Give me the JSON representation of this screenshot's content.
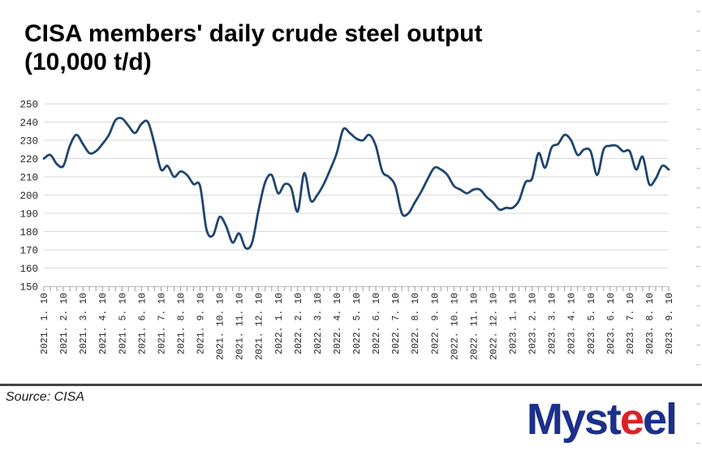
{
  "title": {
    "line1": "CISA members' daily crude steel output",
    "line2": "(10,000 t/d)"
  },
  "chart_data": {
    "type": "line",
    "title": "CISA members' daily crude steel output (10,000 t/d)",
    "xlabel": "",
    "ylabel": "",
    "ylim": [
      150,
      250
    ],
    "y_ticks": [
      250,
      240,
      230,
      220,
      210,
      200,
      190,
      180,
      170,
      160,
      150
    ],
    "grid": "horizontal",
    "legend": "none",
    "points_per_month": 3,
    "x_tick_labels": [
      "2021. 1. 10",
      "2021. 2. 10",
      "2021. 3. 10",
      "2021. 4. 10",
      "2021. 5. 10",
      "2021. 6. 10",
      "2021. 7. 10",
      "2021. 8. 10",
      "2021. 9. 10",
      "2021. 10. 10",
      "2021. 11. 10",
      "2021. 12. 10",
      "2022. 1. 10",
      "2022. 2. 10",
      "2022. 3. 10",
      "2022. 4. 10",
      "2022. 5. 10",
      "2022. 6. 10",
      "2022. 7. 10",
      "2022. 8. 10",
      "2022. 9. 10",
      "2022. 10. 10",
      "2022. 11. 10",
      "2022. 12. 10",
      "2023. 1. 10",
      "2023. 2. 10",
      "2023. 3. 10",
      "2023. 4. 10",
      "2023. 5. 10",
      "2023. 6. 10",
      "2023. 7. 10",
      "2023. 8. 10",
      "2023. 9. 10"
    ],
    "series": [
      {
        "name": "CISA members' daily crude steel output",
        "values": [
          220,
          222,
          217,
          216,
          227,
          233,
          228,
          223,
          224,
          228,
          233,
          241,
          242,
          238,
          234,
          239,
          240,
          228,
          214,
          216,
          210,
          213,
          211,
          206,
          205,
          181,
          178,
          188,
          183,
          174,
          179,
          171,
          174,
          192,
          207,
          211,
          201,
          206,
          204,
          191,
          212,
          197,
          200,
          206,
          214,
          223,
          236,
          234,
          231,
          230,
          233,
          227,
          213,
          210,
          205,
          190,
          190,
          196,
          202,
          209,
          215,
          214,
          211,
          205,
          203,
          201,
          203,
          203,
          199,
          196,
          192,
          193,
          193,
          197,
          207,
          209,
          223,
          215,
          226,
          228,
          233,
          230,
          222,
          225,
          224,
          211,
          225,
          227,
          227,
          224,
          224,
          214,
          221,
          206,
          209,
          216,
          214
        ]
      }
    ],
    "line_color": "#1f456f",
    "gridline_color": "#d9d9d9",
    "axis_line_color": "#c3c3c3",
    "tick_color": "#9a9a9a",
    "label_color": "#262626",
    "edge_tick_color": "#c9c9c9"
  },
  "footer": {
    "source": "Source: CISA"
  },
  "logo": {
    "part1": "Myst",
    "part2": "e",
    "part3": "el",
    "blue": "#1b2f8c",
    "red": "#dd2127"
  }
}
